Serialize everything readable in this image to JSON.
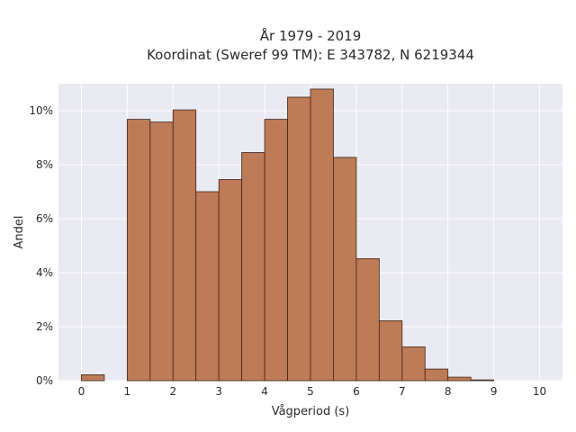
{
  "chart_data": {
    "type": "bar",
    "title_lines": [
      "År 1979 - 2019",
      "Koordinat (Sweref 99 TM): E 343782, N 6219344"
    ],
    "xlabel": "Vågperiod (s)",
    "ylabel": "Andel",
    "xlim": [
      -0.5,
      10.5
    ],
    "ylim": [
      0,
      11
    ],
    "x_ticks": [
      0,
      1,
      2,
      3,
      4,
      5,
      6,
      7,
      8,
      9,
      10
    ],
    "y_ticks": [
      0,
      2,
      4,
      6,
      8,
      10
    ],
    "y_tick_labels": [
      "0%",
      "2%",
      "4%",
      "6%",
      "8%",
      "10%"
    ],
    "bin_width": 0.5,
    "bin_starts": [
      0,
      0.5,
      1,
      1.5,
      2,
      2.5,
      3,
      3.5,
      4,
      4.5,
      5,
      5.5,
      6,
      6.5,
      7,
      7.5,
      8,
      8.5,
      9,
      9.5
    ],
    "values": [
      0.22,
      0,
      9.68,
      9.58,
      10.03,
      7.0,
      7.45,
      8.45,
      9.68,
      10.5,
      10.8,
      8.27,
      4.52,
      2.22,
      1.25,
      0.43,
      0.13,
      0.03,
      0,
      0
    ],
    "grid": true,
    "colors": {
      "bar_fill": "#bd7b57",
      "bar_edge": "#3d2418",
      "plot_bg": "#eaeaf2",
      "grid": "#ffffff",
      "text": "#2a2a2a"
    }
  }
}
